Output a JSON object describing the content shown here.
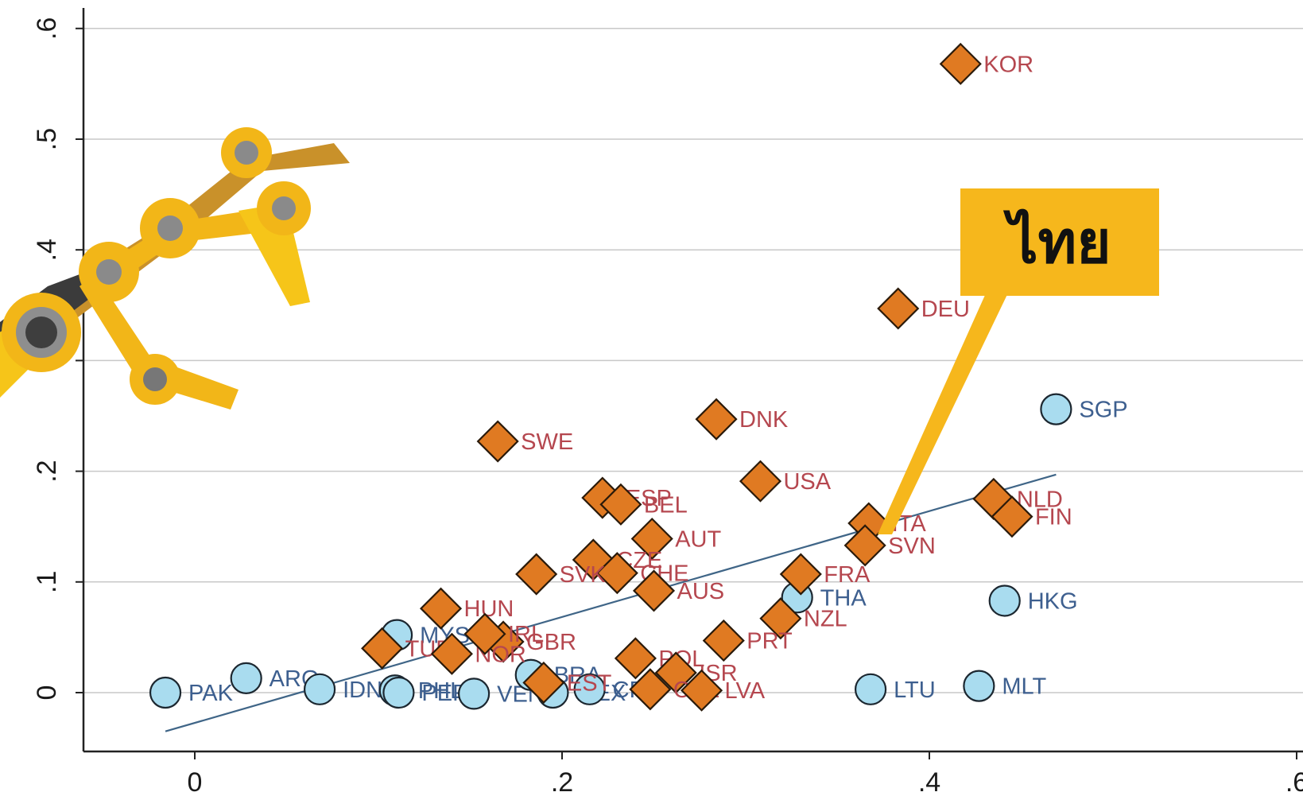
{
  "chart_data": {
    "type": "scatter",
    "title": "",
    "xlabel": "",
    "ylabel": "",
    "xlim": [
      -0.06,
      0.6
    ],
    "ylim": [
      -0.05,
      0.62
    ],
    "x_ticks": [
      0,
      0.2,
      0.4,
      0.6
    ],
    "x_tick_labels": [
      "0",
      ".2",
      ".4",
      ".6"
    ],
    "y_ticks": [
      0,
      0.1,
      0.2,
      0.3,
      0.4,
      0.5,
      0.6
    ],
    "y_tick_labels": [
      "0",
      ".1",
      ".2",
      "",
      ".4",
      ".5",
      ".6"
    ],
    "grid": true,
    "series": [
      {
        "marker": "diamond",
        "color": "#e07a22",
        "label_color": "#b5474f",
        "points": [
          {
            "label": "KOR",
            "x": 0.417,
            "y": 0.568
          },
          {
            "label": "DEU",
            "x": 0.383,
            "y": 0.347
          },
          {
            "label": "DNK",
            "x": 0.284,
            "y": 0.247
          },
          {
            "label": "SWE",
            "x": 0.165,
            "y": 0.227
          },
          {
            "label": "USA",
            "x": 0.308,
            "y": 0.191
          },
          {
            "label": "ESP",
            "x": 0.222,
            "y": 0.176
          },
          {
            "label": "BEL",
            "x": 0.232,
            "y": 0.17
          },
          {
            "label": "NLD",
            "x": 0.435,
            "y": 0.175
          },
          {
            "label": "FIN",
            "x": 0.445,
            "y": 0.159
          },
          {
            "label": "ITA",
            "x": 0.367,
            "y": 0.153
          },
          {
            "label": "SVN",
            "x": 0.365,
            "y": 0.133
          },
          {
            "label": "AUT",
            "x": 0.249,
            "y": 0.139
          },
          {
            "label": "CZE",
            "x": 0.217,
            "y": 0.12
          },
          {
            "label": "CHE",
            "x": 0.23,
            "y": 0.108
          },
          {
            "label": "SVK",
            "x": 0.186,
            "y": 0.107
          },
          {
            "label": "FRA",
            "x": 0.33,
            "y": 0.107
          },
          {
            "label": "AUS",
            "x": 0.25,
            "y": 0.092
          },
          {
            "label": "HUN",
            "x": 0.134,
            "y": 0.076
          },
          {
            "label": "NZL",
            "x": 0.319,
            "y": 0.067
          },
          {
            "label": "GBR",
            "x": 0.168,
            "y": 0.046
          },
          {
            "label": "POL",
            "x": 0.24,
            "y": 0.031
          },
          {
            "label": "PRT",
            "x": 0.288,
            "y": 0.047
          },
          {
            "label": "TUR",
            "x": 0.102,
            "y": 0.04
          },
          {
            "label": "NOR",
            "x": 0.14,
            "y": 0.035
          },
          {
            "label": "IRL",
            "x": 0.158,
            "y": 0.053
          },
          {
            "label": "ISR",
            "x": 0.262,
            "y": 0.018
          },
          {
            "label": "EST",
            "x": 0.19,
            "y": 0.009
          },
          {
            "label": "CHL",
            "x": 0.248,
            "y": 0.003
          },
          {
            "label": "LVA",
            "x": 0.276,
            "y": 0.002
          }
        ]
      },
      {
        "marker": "circle",
        "color": "#a9dcef",
        "label_color": "#3d5f8f",
        "points": [
          {
            "label": "SGP",
            "x": 0.469,
            "y": 0.256
          },
          {
            "label": "THA",
            "x": 0.328,
            "y": 0.086
          },
          {
            "label": "HKG",
            "x": 0.441,
            "y": 0.083
          },
          {
            "label": "LTU",
            "x": 0.368,
            "y": 0.003
          },
          {
            "label": "MLT",
            "x": 0.427,
            "y": 0.006
          },
          {
            "label": "PAK",
            "x": -0.016,
            "y": 0.0
          },
          {
            "label": "ARG",
            "x": 0.028,
            "y": 0.013
          },
          {
            "label": "IDN",
            "x": 0.068,
            "y": 0.003
          },
          {
            "label": "MYS",
            "x": 0.11,
            "y": 0.052
          },
          {
            "label": "PHL",
            "x": 0.109,
            "y": 0.002
          },
          {
            "label": "PER",
            "x": 0.111,
            "y": 0.0
          },
          {
            "label": "VEN",
            "x": 0.152,
            "y": -0.001
          },
          {
            "label": "BRA",
            "x": 0.183,
            "y": 0.016
          },
          {
            "label": "MEX",
            "x": 0.195,
            "y": 0.0
          },
          {
            "label": "CRI",
            "x": 0.215,
            "y": 0.003
          }
        ]
      }
    ],
    "fit_line": {
      "x": [
        -0.016,
        0.469
      ],
      "y": [
        -0.035,
        0.197
      ]
    },
    "annotation": {
      "text": "ไทย",
      "points_to": "ITA"
    }
  }
}
